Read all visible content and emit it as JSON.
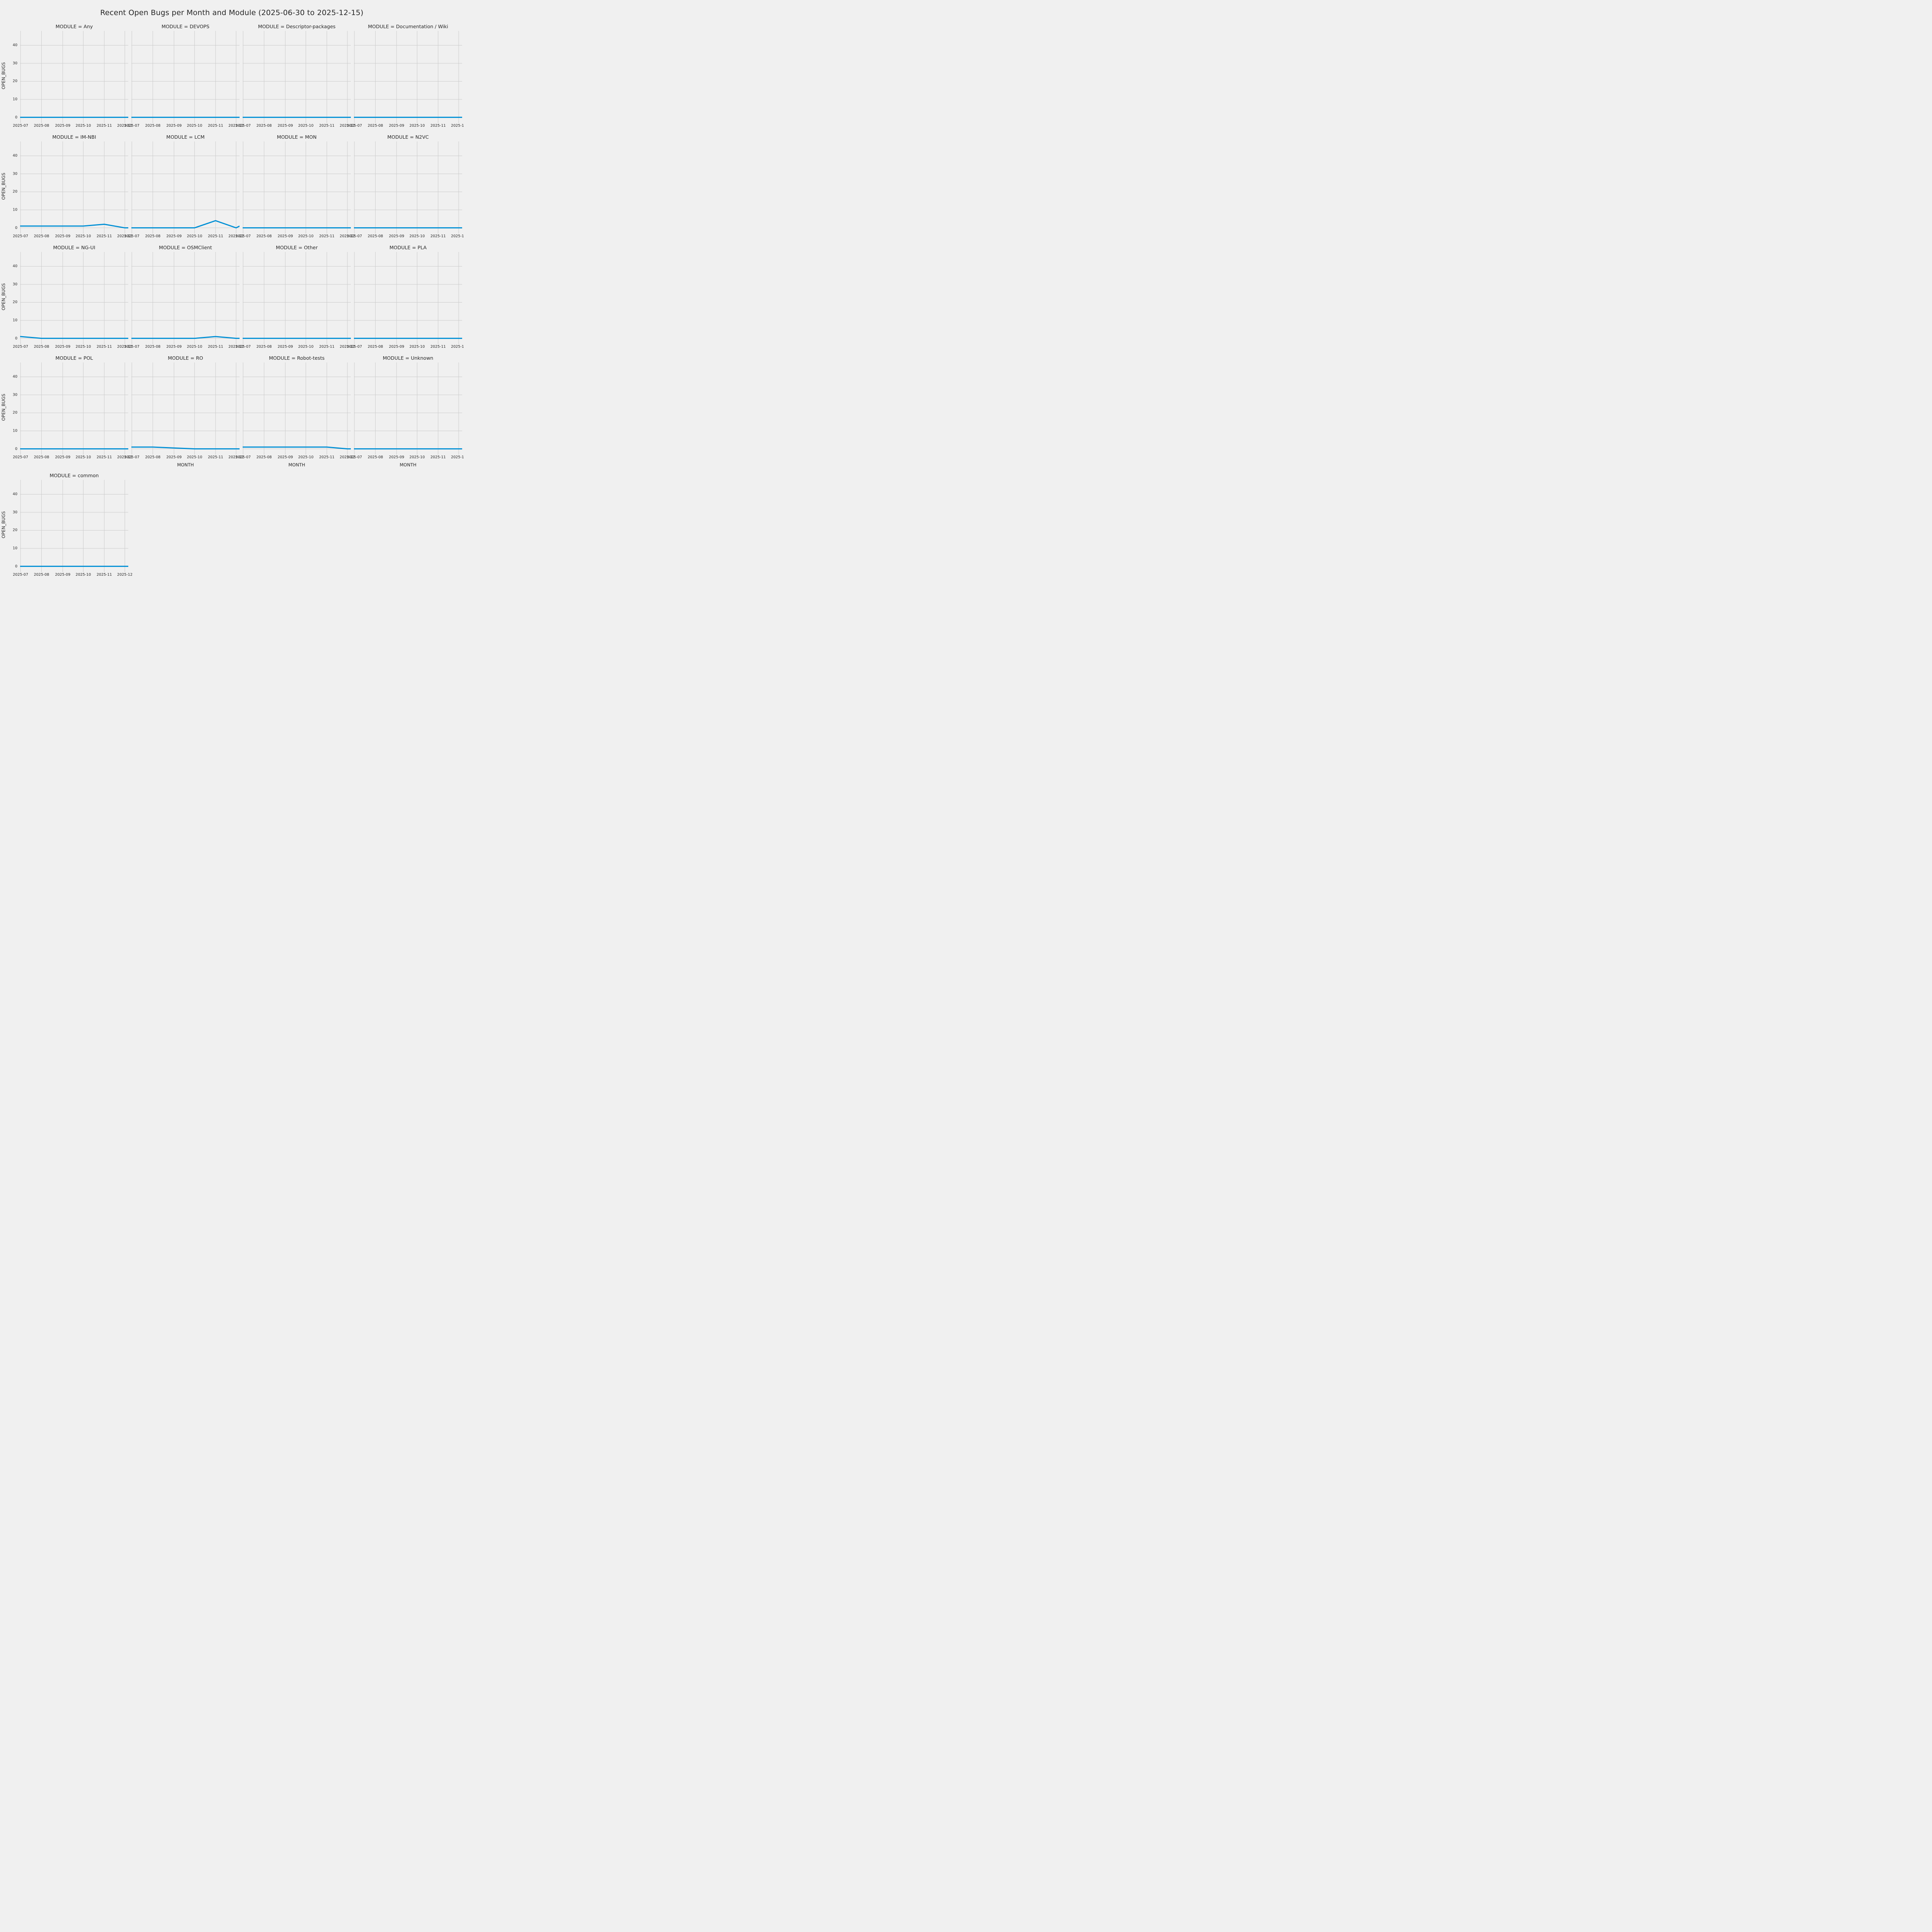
{
  "figure": {
    "title": "Recent Open Bugs per Month and Module (2025-06-30 to 2025-12-15)",
    "x_axis_label": "MONTH",
    "y_axis_label": "OPEN_BUGS",
    "colors": {
      "background": "#F0F0F0",
      "gridline": "#CBCBCB",
      "tick_stub": "#C4C4C4",
      "line": "#008FD5",
      "text": "#262626"
    }
  },
  "chart_data": {
    "type": "line",
    "title": "Recent Open Bugs per Month and Module (2025-06-30 to 2025-12-15)",
    "facet_variable": "MODULE",
    "xlabel": "MONTH",
    "ylabel": "OPEN_BUGS",
    "grid": true,
    "legend": "none",
    "x": [
      "2025-06-30",
      "2025-07",
      "2025-08",
      "2025-09",
      "2025-10",
      "2025-11",
      "2025-12",
      "2025-12-15"
    ],
    "x_positions": [
      0.0,
      0.004,
      0.198,
      0.394,
      0.584,
      0.778,
      0.968,
      1.0
    ],
    "x_tick_labels": [
      "2025-07",
      "2025-08",
      "2025-09",
      "2025-10",
      "2025-11",
      "2025-12"
    ],
    "x_tick_positions": [
      0.004,
      0.198,
      0.394,
      0.584,
      0.778,
      0.968
    ],
    "yticks": [
      0,
      10,
      20,
      30,
      40
    ],
    "ylim": [
      -2,
      48
    ],
    "columns": 4,
    "facets": [
      {
        "module": "Any",
        "label": "MODULE = Any",
        "values": [
          0,
          0,
          0,
          0,
          0,
          0,
          0,
          0
        ],
        "show_xlabel": false
      },
      {
        "module": "DEVOPS",
        "label": "MODULE = DEVOPS",
        "values": [
          0,
          0,
          0,
          0,
          0,
          0,
          0,
          0
        ],
        "show_xlabel": false
      },
      {
        "module": "Descriptor-packages",
        "label": "MODULE = Descriptor-packages",
        "values": [
          0,
          0,
          0,
          0,
          0,
          0,
          0,
          0
        ],
        "show_xlabel": false
      },
      {
        "module": "Documentation / Wiki",
        "label": "MODULE = Documentation / Wiki",
        "values": [
          0,
          0,
          0,
          0,
          0,
          0,
          0,
          0
        ],
        "show_xlabel": false
      },
      {
        "module": "IM-NBI",
        "label": "MODULE = IM-NBI",
        "values": [
          1,
          1,
          1,
          1,
          1,
          2,
          0,
          0
        ],
        "show_xlabel": false
      },
      {
        "module": "LCM",
        "label": "MODULE = LCM",
        "values": [
          0,
          0,
          0,
          0,
          0,
          4,
          0,
          1
        ],
        "show_xlabel": false
      },
      {
        "module": "MON",
        "label": "MODULE = MON",
        "values": [
          0,
          0,
          0,
          0,
          0,
          0,
          0,
          0
        ],
        "show_xlabel": false
      },
      {
        "module": "N2VC",
        "label": "MODULE = N2VC",
        "values": [
          0,
          0,
          0,
          0,
          0,
          0,
          0,
          0
        ],
        "show_xlabel": false
      },
      {
        "module": "NG-UI",
        "label": "MODULE = NG-UI",
        "values": [
          1,
          1,
          0,
          0,
          0,
          0,
          0,
          0
        ],
        "show_xlabel": false
      },
      {
        "module": "OSMClient",
        "label": "MODULE = OSMClient",
        "values": [
          0,
          0,
          0,
          0,
          0,
          1,
          0,
          0
        ],
        "show_xlabel": false
      },
      {
        "module": "Other",
        "label": "MODULE = Other",
        "values": [
          0,
          0,
          0,
          0,
          0,
          0,
          0,
          0
        ],
        "show_xlabel": false
      },
      {
        "module": "PLA",
        "label": "MODULE = PLA",
        "values": [
          0,
          0,
          0,
          0,
          0,
          0,
          0,
          0
        ],
        "show_xlabel": false
      },
      {
        "module": "POL",
        "label": "MODULE = POL",
        "values": [
          0,
          0,
          0,
          0,
          0,
          0,
          0,
          0
        ],
        "show_xlabel": false
      },
      {
        "module": "RO",
        "label": "MODULE = RO",
        "values": [
          1,
          1,
          1,
          0.5,
          0,
          0,
          0,
          0
        ],
        "show_xlabel": true
      },
      {
        "module": "Robot-tests",
        "label": "MODULE = Robot-tests",
        "values": [
          1,
          1,
          1,
          1,
          1,
          1,
          0,
          0
        ],
        "show_xlabel": true
      },
      {
        "module": "Unknown",
        "label": "MODULE = Unknown",
        "values": [
          0,
          0,
          0,
          0,
          0,
          0,
          0,
          0
        ],
        "show_xlabel": true
      },
      {
        "module": "common",
        "label": "MODULE = common",
        "values": [
          0,
          0,
          0,
          0,
          0,
          0,
          0,
          0
        ],
        "show_xlabel": true
      }
    ]
  }
}
